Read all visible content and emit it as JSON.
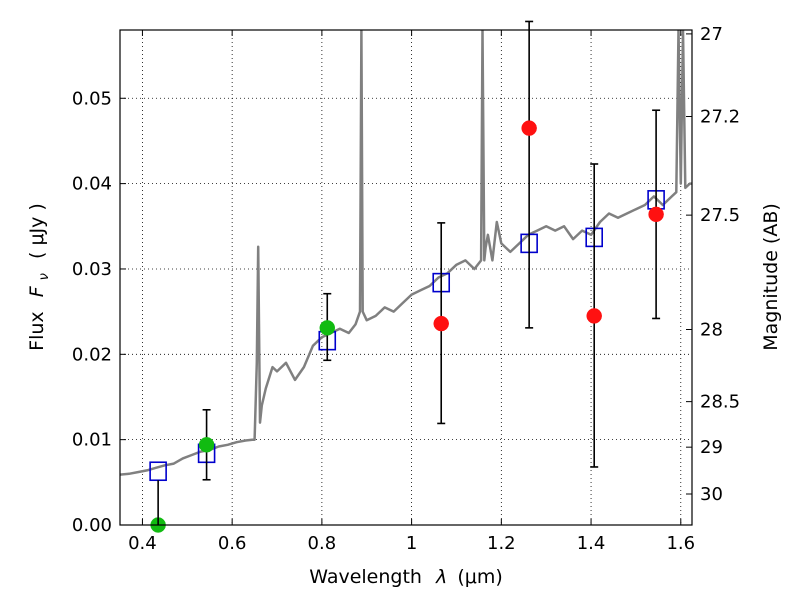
{
  "chart_data": {
    "type": "scatter",
    "title": "",
    "xlabel_prefix": "Wavelength",
    "xlabel_symbol": "λ",
    "xlabel_unit": "(μm)",
    "ylabel_prefix": "Flux",
    "ylabel_symbol": "F",
    "ylabel_sub": "ν",
    "ylabel_unit": "( μJy )",
    "y2label": "Magnitude (AB)",
    "xlim": [
      0.35,
      1.625
    ],
    "ylim": [
      0.0,
      0.058
    ],
    "grid": true,
    "x_ticks": [
      {
        "value": 0.4,
        "label": "0.4"
      },
      {
        "value": 0.6,
        "label": "0.6"
      },
      {
        "value": 0.8,
        "label": "0.8"
      },
      {
        "value": 1.0,
        "label": "1"
      },
      {
        "value": 1.2,
        "label": "1.2"
      },
      {
        "value": 1.4,
        "label": "1.4"
      },
      {
        "value": 1.6,
        "label": "1.6"
      }
    ],
    "y_ticks": [
      {
        "value": 0.0,
        "label": "0.00"
      },
      {
        "value": 0.01,
        "label": "0.01"
      },
      {
        "value": 0.02,
        "label": "0.02"
      },
      {
        "value": 0.03,
        "label": "0.03"
      },
      {
        "value": 0.04,
        "label": "0.04"
      },
      {
        "value": 0.05,
        "label": "0.05"
      }
    ],
    "mag_ticks": [
      {
        "value": 27.0,
        "label": "27"
      },
      {
        "value": 27.2,
        "label": "27.2"
      },
      {
        "value": 27.5,
        "label": "27.5"
      },
      {
        "value": 28.0,
        "label": "28"
      },
      {
        "value": 28.5,
        "label": "28.5"
      },
      {
        "value": 29.0,
        "label": "29"
      },
      {
        "value": 30.0,
        "label": "30"
      }
    ],
    "colors": {
      "spectrum": "#808080",
      "model": "#0000cc",
      "detected": "#11bb11",
      "upper": "#ff1111",
      "errorbar": "#000000"
    },
    "spectrum": {
      "x": [
        0.35,
        0.37,
        0.39,
        0.41,
        0.43,
        0.45,
        0.47,
        0.49,
        0.51,
        0.53,
        0.55,
        0.57,
        0.59,
        0.61,
        0.63,
        0.645,
        0.65,
        0.655,
        0.658,
        0.662,
        0.666,
        0.675,
        0.69,
        0.7,
        0.72,
        0.74,
        0.76,
        0.78,
        0.8,
        0.82,
        0.84,
        0.86,
        0.875,
        0.885,
        0.888,
        0.891,
        0.9,
        0.92,
        0.94,
        0.96,
        0.98,
        1.0,
        1.02,
        1.04,
        1.06,
        1.08,
        1.1,
        1.12,
        1.14,
        1.155,
        1.158,
        1.162,
        1.165,
        1.17,
        1.18,
        1.19,
        1.2,
        1.22,
        1.24,
        1.26,
        1.28,
        1.3,
        1.32,
        1.34,
        1.36,
        1.38,
        1.4,
        1.42,
        1.44,
        1.46,
        1.48,
        1.5,
        1.52,
        1.54,
        1.56,
        1.58,
        1.59,
        1.595,
        1.6,
        1.605,
        1.61,
        1.62,
        1.625
      ],
      "y": [
        0.0059,
        0.006,
        0.0062,
        0.0064,
        0.0067,
        0.007,
        0.0072,
        0.0078,
        0.0082,
        0.0086,
        0.0088,
        0.0092,
        0.0094,
        0.0097,
        0.0099,
        0.01,
        0.01,
        0.019,
        0.0326,
        0.012,
        0.014,
        0.016,
        0.0185,
        0.018,
        0.019,
        0.017,
        0.0185,
        0.021,
        0.022,
        0.0225,
        0.023,
        0.0225,
        0.0235,
        0.025,
        0.058,
        0.025,
        0.024,
        0.0245,
        0.0255,
        0.025,
        0.026,
        0.027,
        0.0275,
        0.028,
        0.029,
        0.0295,
        0.0305,
        0.031,
        0.03,
        0.031,
        0.058,
        0.031,
        0.0325,
        0.034,
        0.031,
        0.0355,
        0.033,
        0.032,
        0.033,
        0.034,
        0.0345,
        0.035,
        0.0345,
        0.035,
        0.0335,
        0.0345,
        0.034,
        0.0355,
        0.0365,
        0.036,
        0.0365,
        0.037,
        0.0375,
        0.0385,
        0.0375,
        0.0385,
        0.039,
        0.058,
        0.04,
        0.058,
        0.0395,
        0.04,
        0.04
      ]
    },
    "model_points": {
      "x": [
        0.435,
        0.543,
        0.812,
        1.066,
        1.262,
        1.407,
        1.545
      ],
      "y": [
        0.0063,
        0.0084,
        0.0216,
        0.0284,
        0.033,
        0.0337,
        0.0381
      ]
    },
    "detected_points": {
      "x": [
        0.435,
        0.543,
        0.812
      ],
      "y": [
        0.0,
        0.0094,
        0.0231
      ],
      "err_low": [
        0.0,
        0.0041,
        0.0038
      ],
      "err_high": [
        0.0,
        0.0041,
        0.004
      ]
    },
    "upper_limit_points": {
      "x": [
        1.066,
        1.262,
        1.407,
        1.545
      ],
      "y": [
        0.0236,
        0.0465,
        0.0245,
        0.0364
      ],
      "err_low": [
        0.0117,
        0.0234,
        0.0177,
        0.0122
      ],
      "err_high": [
        0.0118,
        0.0125,
        0.0178,
        0.0122
      ]
    }
  }
}
